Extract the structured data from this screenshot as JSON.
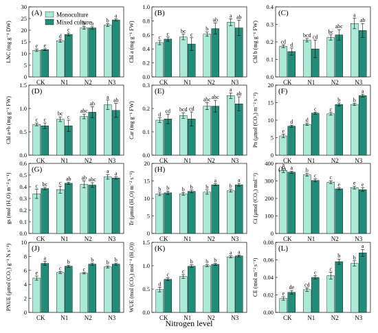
{
  "figure": {
    "xlabel": "Nitrogen level",
    "legend": {
      "placement": "top-left of panel A",
      "entries": [
        "Monoculture",
        "Mixed culture"
      ]
    },
    "colors": {
      "Monoculture": "#a8ead6",
      "Mixed culture": "#1f8d78"
    }
  },
  "chart_data": [
    {
      "type": "bar",
      "panel": "(A)",
      "ylabel": "LNC (mg g⁻¹ DW)",
      "categories": [
        "CK",
        "N1",
        "N2",
        "N3"
      ],
      "ylim": [
        0,
        30
      ],
      "yticks": [
        0,
        5,
        10,
        15,
        20,
        25,
        30
      ],
      "series": [
        {
          "name": "Monoculture",
          "values": [
            11.4,
            15.5,
            21.0,
            22.2
          ],
          "errors": [
            0.5,
            0.6,
            0.6,
            0.6
          ],
          "letters": [
            "e",
            "d",
            "b",
            "b"
          ]
        },
        {
          "name": "Mixed culture",
          "values": [
            11.7,
            18.2,
            21.0,
            24.4
          ],
          "errors": [
            0.4,
            0.6,
            0.5,
            0.4
          ],
          "letters": [
            "e",
            "c",
            "b",
            "a"
          ]
        }
      ]
    },
    {
      "type": "bar",
      "panel": "(B)",
      "ylabel": "Chl a (mg g⁻¹ FW)",
      "categories": [
        "CK",
        "N1",
        "N2",
        "N3"
      ],
      "ylim": [
        0,
        1.0
      ],
      "yticks": [
        0.0,
        0.2,
        0.4,
        0.6,
        0.8,
        1.0
      ],
      "series": [
        {
          "name": "Monoculture",
          "values": [
            0.49,
            0.57,
            0.61,
            0.78
          ],
          "errors": [
            0.03,
            0.04,
            0.03,
            0.05
          ],
          "letters": [
            "c",
            "bc",
            "b",
            "a"
          ]
        },
        {
          "name": "Mixed culture",
          "values": [
            0.54,
            0.47,
            0.69,
            0.7
          ],
          "errors": [
            0.03,
            0.09,
            0.08,
            0.11
          ],
          "letters": [
            "c",
            "c",
            "ab",
            "ab"
          ]
        }
      ]
    },
    {
      "type": "bar",
      "panel": "(C)",
      "ylabel": "Chl b (mg g⁻¹ FW)",
      "categories": [
        "CK",
        "N1",
        "N2",
        "N3"
      ],
      "ylim": [
        0,
        0.4
      ],
      "yticks": [
        0.0,
        0.1,
        0.2,
        0.3,
        0.4
      ],
      "series": [
        {
          "name": "Monoculture",
          "values": [
            0.175,
            0.21,
            0.225,
            0.305
          ],
          "errors": [
            0.008,
            0.01,
            0.015,
            0.03
          ],
          "letters": [
            "cd",
            "bcd",
            "bc",
            "a"
          ]
        },
        {
          "name": "Mixed culture",
          "values": [
            0.145,
            0.16,
            0.24,
            0.265
          ],
          "errors": [
            0.02,
            0.05,
            0.03,
            0.04
          ],
          "letters": [
            "d",
            "cd",
            "abc",
            "ab"
          ]
        }
      ]
    },
    {
      "type": "bar",
      "panel": "(D)",
      "ylabel": "Chl a+b (mg g⁻¹ FW)",
      "categories": [
        "CK",
        "N1",
        "N2",
        "N3"
      ],
      "ylim": [
        0,
        1.5
      ],
      "yticks": [
        0.0,
        0.5,
        1.0,
        1.5
      ],
      "series": [
        {
          "name": "Monoculture",
          "values": [
            0.66,
            0.77,
            0.83,
            1.08
          ],
          "errors": [
            0.03,
            0.05,
            0.05,
            0.1
          ],
          "letters": [
            "c",
            "bc",
            "abc",
            "a"
          ]
        },
        {
          "name": "Mixed culture",
          "values": [
            0.63,
            0.63,
            0.92,
            0.96
          ],
          "errors": [
            0.06,
            0.12,
            0.12,
            0.15
          ],
          "letters": [
            "c",
            "c",
            "ab",
            "ab"
          ]
        }
      ]
    },
    {
      "type": "bar",
      "panel": "(E)",
      "ylabel": "Car (mg g⁻¹ FW)",
      "categories": [
        "CK",
        "N1",
        "N2",
        "N3"
      ],
      "ylim": [
        0,
        0.3
      ],
      "yticks": [
        0.0,
        0.1,
        0.2,
        0.3
      ],
      "series": [
        {
          "name": "Monoculture",
          "values": [
            0.15,
            0.17,
            0.21,
            0.255
          ],
          "errors": [
            0.01,
            0.012,
            0.015,
            0.012
          ],
          "letters": [
            "d",
            "bcd",
            "abc",
            "a"
          ]
        },
        {
          "name": "Mixed culture",
          "values": [
            0.155,
            0.155,
            0.21,
            0.22
          ],
          "errors": [
            0.02,
            0.03,
            0.025,
            0.03
          ],
          "letters": [
            "cd",
            "cd",
            "abc",
            "ab"
          ]
        }
      ]
    },
    {
      "type": "bar",
      "panel": "(F)",
      "ylabel": "Pn (μmol (CO₂) m⁻² s⁻¹)",
      "categories": [
        "CK",
        "N1",
        "N2",
        "N3"
      ],
      "ylim": [
        0,
        20
      ],
      "yticks": [
        0,
        5,
        10,
        15,
        20
      ],
      "series": [
        {
          "name": "Monoculture",
          "values": [
            5.5,
            8.8,
            11.8,
            14.5
          ],
          "errors": [
            0.5,
            0.3,
            0.4,
            0.3
          ],
          "letters": [
            "e",
            "d",
            "c",
            "b"
          ]
        },
        {
          "name": "Mixed culture",
          "values": [
            8.3,
            12.0,
            14.5,
            17.0
          ],
          "errors": [
            0.3,
            0.3,
            0.4,
            0.4
          ],
          "letters": [
            "d",
            "c",
            "b",
            "a"
          ]
        }
      ]
    },
    {
      "type": "bar",
      "panel": "(G)",
      "ylabel": "gs (mol (H₂O) m⁻² s⁻¹)",
      "categories": [
        "CK",
        "N1",
        "N2",
        "N3"
      ],
      "ylim": [
        0,
        0.6
      ],
      "yticks": [
        0.0,
        0.1,
        0.2,
        0.3,
        0.4,
        0.5,
        0.6
      ],
      "series": [
        {
          "name": "Monoculture",
          "values": [
            0.34,
            0.375,
            0.42,
            0.485
          ],
          "errors": [
            0.04,
            0.03,
            0.03,
            0.02
          ],
          "letters": [
            "c",
            "c",
            "ab",
            "a"
          ]
        },
        {
          "name": "Mixed culture",
          "values": [
            0.385,
            0.43,
            0.415,
            0.475
          ],
          "errors": [
            0.01,
            0.01,
            0.02,
            0.01
          ],
          "letters": [
            "bc",
            "ab",
            "abc",
            "a"
          ]
        }
      ]
    },
    {
      "type": "bar",
      "panel": "(H)",
      "ylabel": "Tr (μmol (H₂O) m⁻² s⁻¹)",
      "categories": [
        "CK",
        "N1",
        "N2",
        "N3"
      ],
      "ylim": [
        0,
        20
      ],
      "yticks": [
        0,
        5,
        10,
        15,
        20
      ],
      "series": [
        {
          "name": "Monoculture",
          "values": [
            11.3,
            11.3,
            11.8,
            12.2
          ],
          "errors": [
            0.5,
            0.4,
            0.6,
            0.4
          ],
          "letters": [
            "b",
            "b",
            "b",
            "b"
          ]
        },
        {
          "name": "Mixed culture",
          "values": [
            11.6,
            12.0,
            13.9,
            13.9
          ],
          "errors": [
            0.5,
            0.4,
            0.3,
            0.4
          ],
          "letters": [
            "b",
            "b",
            "a",
            "a"
          ]
        }
      ]
    },
    {
      "type": "bar",
      "panel": "(I)",
      "ylabel": "Ci (μmol (CO₂) mol⁻¹)",
      "categories": [
        "CK",
        "N1",
        "N2",
        "N3"
      ],
      "ylim": [
        0,
        400
      ],
      "yticks": [
        0,
        100,
        200,
        300,
        400
      ],
      "series": [
        {
          "name": "Monoculture",
          "values": [
            360,
            335,
            293,
            262
          ],
          "errors": [
            12,
            8,
            8,
            8
          ],
          "letters": [
            "a",
            "b",
            "c",
            "e"
          ]
        },
        {
          "name": "Mixed culture",
          "values": [
            350,
            303,
            255,
            250
          ],
          "errors": [
            6,
            8,
            6,
            10
          ],
          "letters": [
            "a",
            "c",
            "e",
            "e"
          ]
        }
      ]
    },
    {
      "type": "bar",
      "panel": "(J)",
      "ylabel": "PNUE (μmol (CO₂) g⁻¹ N s⁻¹)",
      "categories": [
        "CK",
        "N1",
        "N2",
        "N3"
      ],
      "ylim": [
        0,
        10
      ],
      "yticks": [
        0,
        2,
        4,
        6,
        8,
        10
      ],
      "series": [
        {
          "name": "Monoculture",
          "values": [
            4.9,
            5.7,
            5.6,
            6.5
          ],
          "errors": [
            0.3,
            0.15,
            0.1,
            0.15
          ],
          "letters": [
            "e",
            "c",
            "c",
            "b"
          ]
        },
        {
          "name": "Mixed culture",
          "values": [
            7.0,
            6.6,
            6.9,
            6.9
          ],
          "errors": [
            0.3,
            0.15,
            0.15,
            0.15
          ],
          "letters": [
            "a",
            "b",
            "b",
            "b"
          ]
        }
      ]
    },
    {
      "type": "bar",
      "panel": "(K)",
      "ylabel": "WUE (mol (CO₂) mol⁻¹ (H₂O))",
      "categories": [
        "CK",
        "N1",
        "N2",
        "N3"
      ],
      "ylim": [
        0,
        1.5
      ],
      "yticks": [
        0.0,
        0.5,
        1.0,
        1.5
      ],
      "series": [
        {
          "name": "Monoculture",
          "values": [
            0.49,
            0.77,
            1.0,
            1.19
          ],
          "errors": [
            0.05,
            0.04,
            0.02,
            0.02
          ],
          "letters": [
            "d",
            "c",
            "b",
            "a"
          ]
        },
        {
          "name": "Mixed culture",
          "values": [
            0.71,
            0.99,
            1.03,
            1.21
          ],
          "errors": [
            0.03,
            0.03,
            0.02,
            0.02
          ],
          "letters": [
            "c",
            "b",
            "b",
            "a"
          ]
        }
      ]
    },
    {
      "type": "bar",
      "panel": "(L)",
      "ylabel": "CE (mol m⁻² s⁻¹)",
      "categories": [
        "CK",
        "N1",
        "N2",
        "N3"
      ],
      "ylim": [
        0,
        0.08
      ],
      "yticks": [
        0.0,
        0.02,
        0.04,
        0.06,
        0.08
      ],
      "series": [
        {
          "name": "Monoculture",
          "values": [
            0.016,
            0.026,
            0.042,
            0.056
          ],
          "errors": [
            0.002,
            0.002,
            0.004,
            0.003
          ],
          "letters": [
            "e",
            "cd",
            "c",
            "b"
          ]
        },
        {
          "name": "Mixed culture",
          "values": [
            0.023,
            0.04,
            0.058,
            0.068
          ],
          "errors": [
            0.002,
            0.002,
            0.003,
            0.004
          ],
          "letters": [
            "de",
            "c",
            "b",
            "a"
          ]
        }
      ]
    }
  ]
}
